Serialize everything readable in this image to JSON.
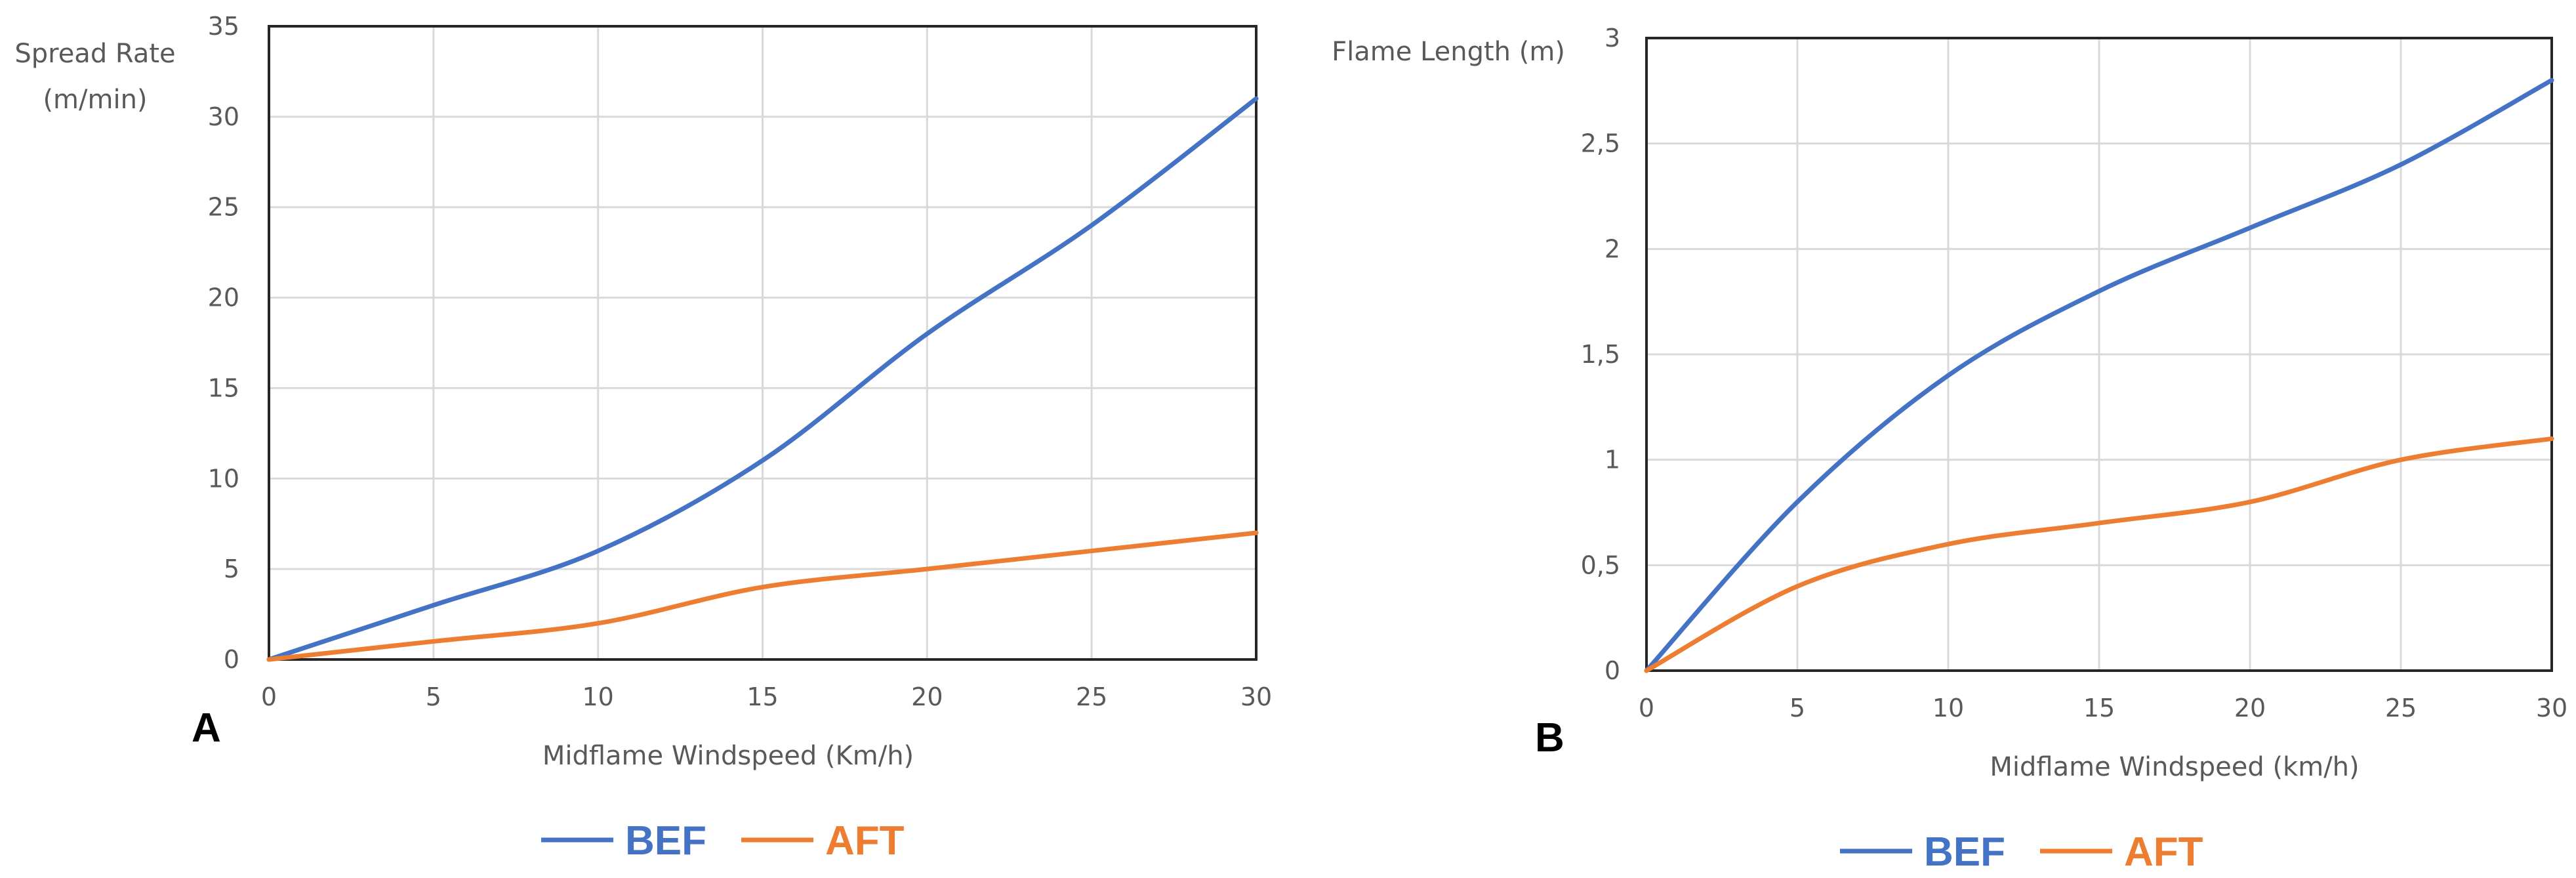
{
  "chart_data": [
    {
      "panel": "A",
      "type": "line",
      "xlabel": "Midflame Windspeed (Km/h)",
      "ylabel": [
        "Spread Rate",
        "(m/min)"
      ],
      "x": [
        0,
        5,
        10,
        15,
        20,
        25,
        30
      ],
      "xlim": [
        0,
        30
      ],
      "ylim": [
        0,
        35
      ],
      "xticks": [
        "0",
        "5",
        "10",
        "15",
        "20",
        "25",
        "30"
      ],
      "yticks": [
        "0",
        "5",
        "10",
        "15",
        "20",
        "25",
        "30",
        "35"
      ],
      "grid": true,
      "legend_position": "bottom",
      "series": [
        {
          "name": "BEF",
          "color": "#4472C4",
          "values": [
            0,
            3,
            6,
            11,
            18,
            24,
            31
          ]
        },
        {
          "name": "AFT",
          "color": "#ED7D31",
          "values": [
            0,
            1,
            2,
            4,
            5,
            6,
            7
          ]
        }
      ]
    },
    {
      "panel": "B",
      "type": "line",
      "xlabel": "Midflame Windspeed (km/h)",
      "ylabel": [
        "Flame Length (m)"
      ],
      "x": [
        0,
        5,
        10,
        15,
        20,
        25,
        30
      ],
      "xlim": [
        0,
        30
      ],
      "ylim": [
        0,
        3
      ],
      "xticks": [
        "0",
        "5",
        "10",
        "15",
        "20",
        "25",
        "30"
      ],
      "yticks": [
        "0",
        "0,5",
        "1",
        "1,5",
        "2",
        "2,5",
        "3"
      ],
      "grid": true,
      "legend_position": "bottom",
      "series": [
        {
          "name": "BEF",
          "color": "#4472C4",
          "values": [
            0,
            0.8,
            1.4,
            1.8,
            2.1,
            2.4,
            2.8
          ]
        },
        {
          "name": "AFT",
          "color": "#ED7D31",
          "values": [
            0,
            0.4,
            0.6,
            0.7,
            0.8,
            1.0,
            1.1
          ]
        }
      ]
    }
  ]
}
